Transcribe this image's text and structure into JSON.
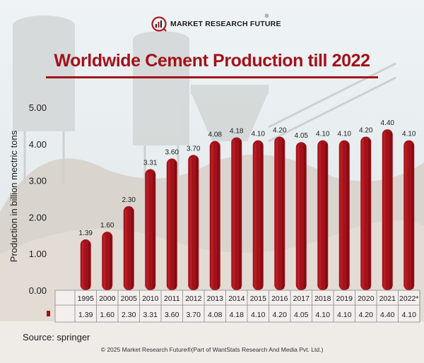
{
  "header": {
    "brand": "MARKET RESEARCH FUTURE",
    "reg_mark": "®",
    "title": "Worldwide Cement Production till 2022"
  },
  "colors": {
    "bar": "#a3121a",
    "bar_dark": "#6e0a10",
    "bar_light": "#c4222b",
    "title": "#a3121a"
  },
  "chart_data": {
    "type": "bar",
    "title": "Worldwide Cement Production till 2022",
    "xlabel": "",
    "ylabel": "Production in billion mectric tons",
    "ylim": [
      0,
      5
    ],
    "yticks": [
      "0.00",
      "1.00",
      "2.00",
      "3.00",
      "4.00",
      "5.00"
    ],
    "categories": [
      "1995",
      "2000",
      "2005",
      "2010",
      "2011",
      "2012",
      "2013",
      "2014",
      "2015",
      "2016",
      "2017",
      "2018",
      "2019",
      "2020",
      "2021",
      "2022*"
    ],
    "values": [
      1.39,
      1.6,
      2.3,
      3.31,
      3.6,
      3.7,
      4.08,
      4.18,
      4.1,
      4.2,
      4.05,
      4.1,
      4.1,
      4.2,
      4.4,
      4.1
    ],
    "value_labels": [
      "1.39",
      "1.60",
      "2.30",
      "3.31",
      "3.60",
      "3.70",
      "4.08",
      "4.18",
      "4.10",
      "4.20",
      "4.05",
      "4.10",
      "4.10",
      "4.20",
      "4.40",
      "4.10"
    ],
    "data_table": true,
    "grid": false,
    "legend": "none"
  },
  "footer": {
    "source": "Source: springer",
    "copyright": "© 2025 Market Research Future®(Part of WantStats Research And Media Pvt. Ltd.)"
  }
}
